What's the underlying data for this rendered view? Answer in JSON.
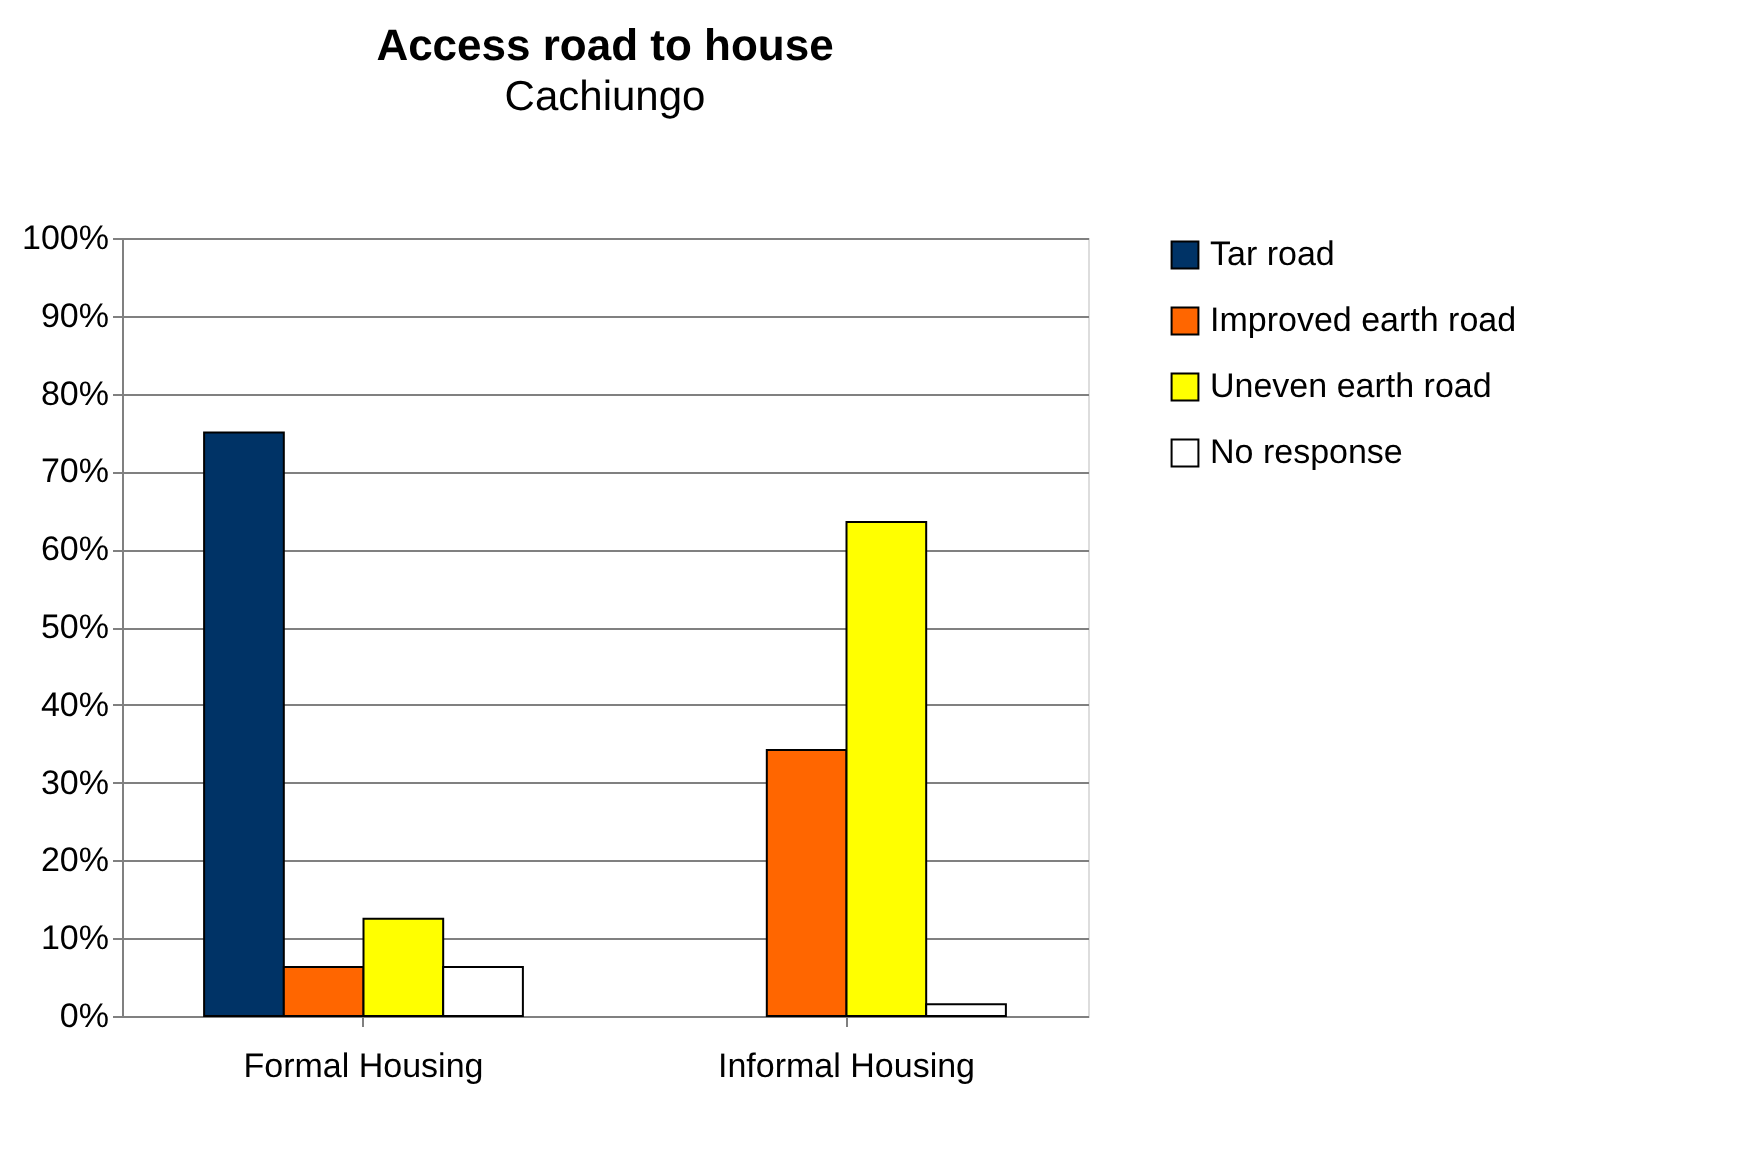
{
  "chart_data": {
    "type": "bar",
    "title": "Access road to house",
    "subtitle": "Cachiungo",
    "categories": [
      "Formal Housing",
      "Informal Housing"
    ],
    "series": [
      {
        "name": "Tar road",
        "color": "#003366",
        "values": [
          75,
          null
        ]
      },
      {
        "name": "Improved earth road",
        "color": "#ff6600",
        "values": [
          6.3,
          34.2
        ]
      },
      {
        "name": "Uneven earth road",
        "color": "#ffff00",
        "values": [
          12.5,
          63.5
        ]
      },
      {
        "name": "No response",
        "color": "#ffffff",
        "values": [
          6.3,
          1.5
        ]
      }
    ],
    "ylim": [
      0,
      100
    ],
    "yticks": [
      {
        "value": 0,
        "label": "0%"
      },
      {
        "value": 10,
        "label": "10%"
      },
      {
        "value": 20,
        "label": "20%"
      },
      {
        "value": 30,
        "label": "30%"
      },
      {
        "value": 40,
        "label": "40%"
      },
      {
        "value": 50,
        "label": "50%"
      },
      {
        "value": 60,
        "label": "60%"
      },
      {
        "value": 70,
        "label": "70%"
      },
      {
        "value": 80,
        "label": "80%"
      },
      {
        "value": 90,
        "label": "90%"
      },
      {
        "value": 100,
        "label": "100%"
      }
    ],
    "grid": "y",
    "legend": "right"
  }
}
